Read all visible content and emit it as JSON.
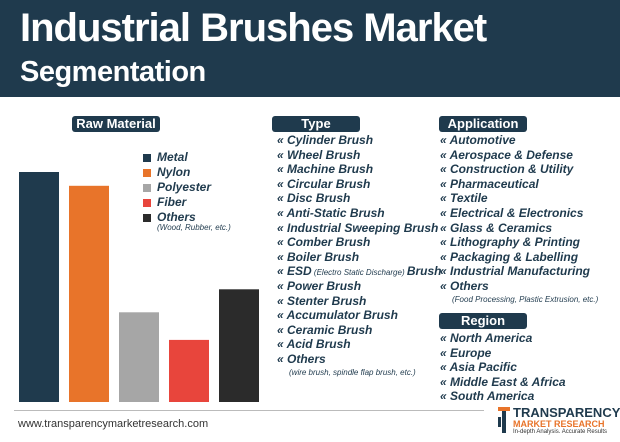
{
  "header": {
    "title_line1": "Industrial Brushes Market",
    "title_line2": "Segmentation"
  },
  "sections": {
    "raw_material": "Raw Material",
    "type": "Type",
    "application": "Application",
    "region": "Region"
  },
  "chart_data": {
    "type": "bar",
    "categories": [
      "Metal",
      "Nylon",
      "Polyester",
      "Fiber",
      "Others"
    ],
    "values": [
      100,
      94,
      39,
      27,
      49
    ],
    "colors": [
      "#1f3a4d",
      "#e8742a",
      "#a6a6a6",
      "#e8453c",
      "#2b2b2b"
    ],
    "title": "",
    "xlabel": "",
    "ylabel": "",
    "ylim": [
      0,
      100
    ],
    "grid": false,
    "legend_placement": "top-right",
    "legend_note": "(Wood, Rubber, etc.)"
  },
  "type_items": [
    "« Cylinder Brush",
    "« Wheel Brush",
    "« Machine Brush",
    "« Circular Brush",
    "« Disc Brush",
    "« Anti-Static Brush",
    "« Industrial Sweeping Brush",
    "« Comber Brush",
    "« Boiler Brush"
  ],
  "type_esd": {
    "prefix": "« ESD",
    "note": " (Electro Static Discharge) ",
    "suffix": "Brush"
  },
  "type_items_2": [
    "« Power Brush",
    "« Stenter Brush",
    "« Accumulator Brush",
    "« Ceramic Brush",
    "« Acid Brush",
    "« Others"
  ],
  "type_others_note": "(wire brush, spindle flap brush, etc.)",
  "application_items": [
    "« Automotive",
    "« Aerospace & Defense",
    "« Construction & Utility",
    "« Pharmaceutical",
    "« Textile",
    "« Electrical & Electronics",
    "« Glass & Ceramics",
    "« Lithography & Printing",
    "« Packaging & Labelling",
    "« Industrial Manufacturing",
    "« Others"
  ],
  "application_others_note": "(Food Processing, Plastic Extrusion, etc.)",
  "region_items": [
    "« North America",
    "« Europe",
    "« Asia Pacific",
    "« Middle East & Africa",
    "« South America"
  ],
  "footer": {
    "url": "www.transparencymarketresearch.com"
  },
  "logo": {
    "line1": "TRANSPARENCY",
    "line2": "MARKET RESEARCH",
    "line3": "In-depth Analysis. Accurate Results"
  }
}
